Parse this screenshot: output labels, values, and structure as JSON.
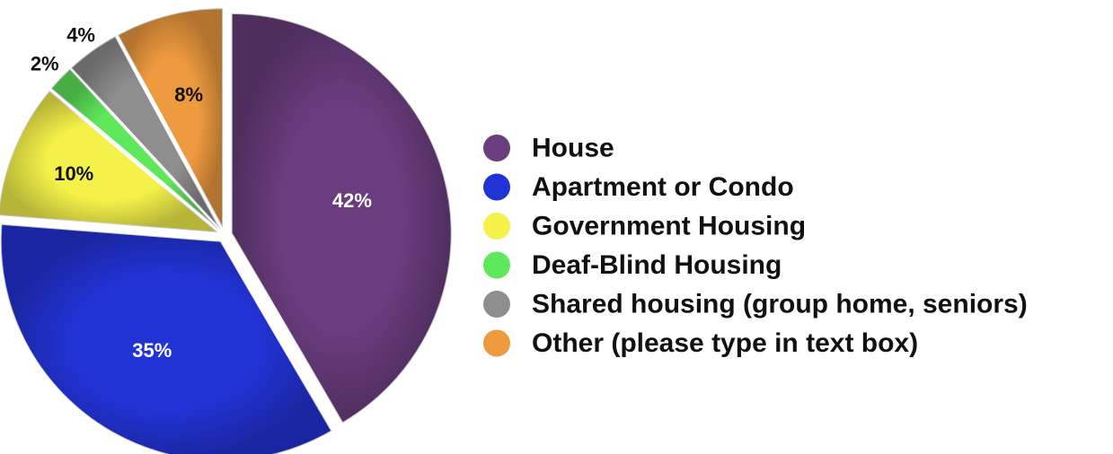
{
  "chart_data": {
    "type": "pie",
    "title": "",
    "slices": [
      {
        "label": "House",
        "value": 42,
        "display": "42%",
        "color": "#6a3d7e"
      },
      {
        "label": "Apartment or Condo",
        "value": 35,
        "display": "35%",
        "color": "#2233d6"
      },
      {
        "label": "Government Housing",
        "value": 10,
        "display": "10%",
        "color": "#f4f14a"
      },
      {
        "label": "Deaf-Blind Housing",
        "value": 2,
        "display": "2%",
        "color": "#5fe85a"
      },
      {
        "label": "Shared housing (group home, seniors)",
        "value": 4,
        "display": "4%",
        "color": "#8e8e8e"
      },
      {
        "label": "Other (please type in text box)",
        "value": 8,
        "display": "8%",
        "color": "#ee9a3e"
      }
    ],
    "legend_position": "right",
    "exploded": true
  }
}
